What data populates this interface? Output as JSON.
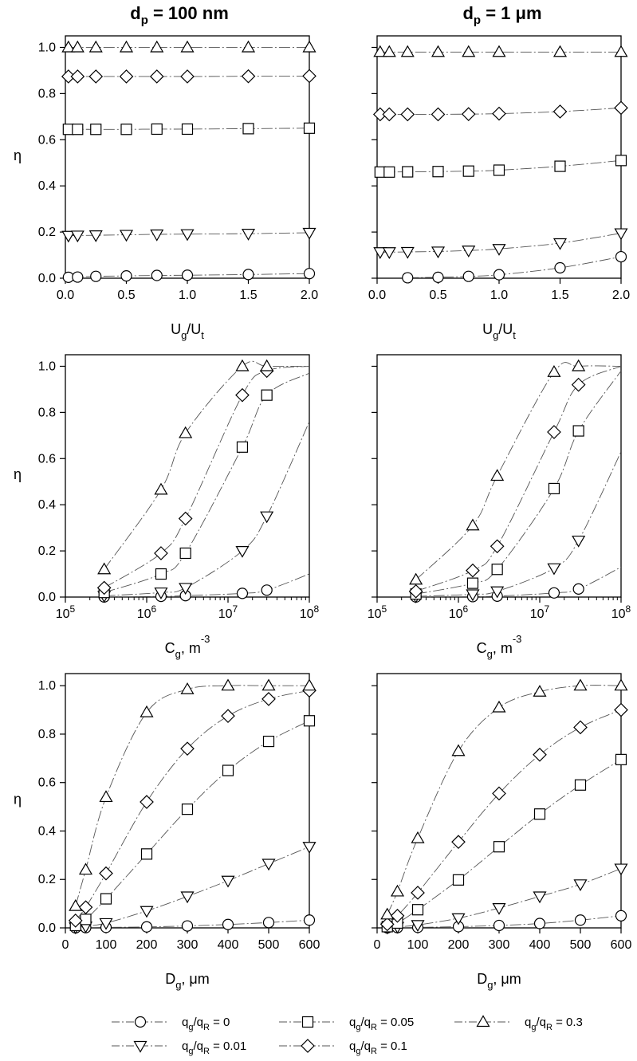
{
  "column_titles": [
    {
      "main": "d",
      "sub": "p",
      "rest": " = 100 nm"
    },
    {
      "main": "d",
      "sub": "p",
      "rest": " = 1 μm"
    }
  ],
  "legend": [
    {
      "key": "s0",
      "symbol": "circle",
      "label": {
        "a": "q",
        "s1": "g",
        "b": "/q",
        "s2": "R",
        "c": " = 0"
      }
    },
    {
      "key": "s05",
      "symbol": "square",
      "label": {
        "a": "q",
        "s1": "g",
        "b": "/q",
        "s2": "R",
        "c": " = 0.05"
      }
    },
    {
      "key": "s3",
      "symbol": "triangle-up",
      "label": {
        "a": "q",
        "s1": "g",
        "b": "/q",
        "s2": "R",
        "c": " = 0.3"
      }
    },
    {
      "key": "s01",
      "symbol": "triangle-down",
      "label": {
        "a": "q",
        "s1": "g",
        "b": "/q",
        "s2": "R",
        "c": " = 0.01"
      }
    },
    {
      "key": "s1",
      "symbol": "diamond",
      "label": {
        "a": "q",
        "s1": "g",
        "b": "/q",
        "s2": "R",
        "c": " = 0.1"
      }
    }
  ],
  "chart_data": [
    {
      "type": "scatter",
      "id": "r1c1",
      "row": 0,
      "col": 0,
      "ylabel": "η",
      "xlabel": {
        "a": "U",
        "s1": "g",
        "b": "/U",
        "s2": "t"
      },
      "xscale": "linear",
      "xlim": [
        0,
        2.0
      ],
      "ylim": [
        0,
        1.05
      ],
      "xticks": [
        "0.0",
        "0.5",
        "1.0",
        "1.5",
        "2.0"
      ],
      "xtick_values": [
        0,
        0.5,
        1.0,
        1.5,
        2.0
      ],
      "yticks": [
        "0.0",
        "0.2",
        "0.4",
        "0.6",
        "0.8",
        "1.0"
      ],
      "ytick_values": [
        0,
        0.2,
        0.4,
        0.6,
        0.8,
        1.0
      ],
      "series": [
        {
          "key": "s0",
          "x": [
            0.025,
            0.1,
            0.25,
            0.5,
            0.75,
            1.0,
            1.5,
            2.0
          ],
          "y": [
            0.004,
            0.005,
            0.008,
            0.01,
            0.012,
            0.013,
            0.016,
            0.02
          ]
        },
        {
          "key": "s01",
          "x": [
            0.025,
            0.1,
            0.25,
            0.5,
            0.75,
            1.0,
            1.5,
            2.0
          ],
          "y": [
            0.184,
            0.185,
            0.186,
            0.188,
            0.19,
            0.191,
            0.193,
            0.197
          ]
        },
        {
          "key": "s05",
          "x": [
            0.025,
            0.1,
            0.25,
            0.5,
            0.75,
            1.0,
            1.5,
            2.0
          ],
          "y": [
            0.645,
            0.645,
            0.645,
            0.645,
            0.646,
            0.646,
            0.648,
            0.65
          ]
        },
        {
          "key": "s1",
          "x": [
            0.025,
            0.1,
            0.25,
            0.5,
            0.75,
            1.0,
            1.5,
            2.0
          ],
          "y": [
            0.874,
            0.874,
            0.874,
            0.874,
            0.874,
            0.874,
            0.875,
            0.876
          ]
        },
        {
          "key": "s3",
          "x": [
            0.025,
            0.1,
            0.25,
            0.5,
            0.75,
            1.0,
            1.5,
            2.0
          ],
          "y": [
            1.0,
            1.0,
            1.0,
            1.0,
            1.0,
            1.0,
            1.0,
            1.0
          ]
        }
      ]
    },
    {
      "type": "scatter",
      "id": "r1c2",
      "row": 0,
      "col": 1,
      "ylabel": "",
      "xlabel": {
        "a": "U",
        "s1": "g",
        "b": "/U",
        "s2": "t"
      },
      "xscale": "linear",
      "xlim": [
        0,
        2.0
      ],
      "ylim": [
        0,
        1.05
      ],
      "xticks": [
        "0.0",
        "0.5",
        "1.0",
        "1.5",
        "2.0"
      ],
      "xtick_values": [
        0,
        0.5,
        1.0,
        1.5,
        2.0
      ],
      "yticks": [],
      "ytick_values": [
        0,
        0.2,
        0.4,
        0.6,
        0.8,
        1.0
      ],
      "series": [
        {
          "key": "s0",
          "x": [
            0.25,
            0.5,
            0.75,
            1.0,
            1.5,
            2.0
          ],
          "y": [
            0.002,
            0.004,
            0.008,
            0.015,
            0.045,
            0.093
          ]
        },
        {
          "key": "s01",
          "x": [
            0.025,
            0.1,
            0.25,
            0.5,
            0.75,
            1.0,
            1.5,
            2.0
          ],
          "y": [
            0.113,
            0.113,
            0.114,
            0.116,
            0.12,
            0.127,
            0.152,
            0.195
          ]
        },
        {
          "key": "s05",
          "x": [
            0.025,
            0.1,
            0.25,
            0.5,
            0.75,
            1.0,
            1.5,
            2.0
          ],
          "y": [
            0.46,
            0.46,
            0.461,
            0.462,
            0.464,
            0.468,
            0.485,
            0.51
          ]
        },
        {
          "key": "s1",
          "x": [
            0.025,
            0.1,
            0.25,
            0.5,
            0.75,
            1.0,
            1.5,
            2.0
          ],
          "y": [
            0.71,
            0.71,
            0.71,
            0.71,
            0.711,
            0.713,
            0.722,
            0.738
          ]
        },
        {
          "key": "s3",
          "x": [
            0.025,
            0.1,
            0.25,
            0.5,
            0.75,
            1.0,
            1.5,
            2.0
          ],
          "y": [
            0.98,
            0.98,
            0.98,
            0.98,
            0.98,
            0.98,
            0.98,
            0.98
          ]
        }
      ]
    },
    {
      "type": "scatter",
      "id": "r2c1",
      "row": 1,
      "col": 0,
      "ylabel": "η",
      "xlabel": {
        "a": "C",
        "s1": "g",
        "b": ", m",
        "sup": "-3"
      },
      "xscale": "log",
      "xlim": [
        100000,
        100000000
      ],
      "ylim": [
        0,
        1.05
      ],
      "xticks": [
        {
          "base": "10",
          "exp": "5"
        },
        {
          "base": "10",
          "exp": "6"
        },
        {
          "base": "10",
          "exp": "7"
        },
        {
          "base": "10",
          "exp": "8"
        }
      ],
      "xtick_values": [
        100000,
        1000000,
        10000000,
        100000000
      ],
      "yticks": [
        "0.0",
        "0.2",
        "0.4",
        "0.6",
        "0.8",
        "1.0"
      ],
      "ytick_values": [
        0,
        0.2,
        0.4,
        0.6,
        0.8,
        1.0
      ],
      "series": [
        {
          "key": "s0",
          "x": [
            300000,
            1500000,
            3000000,
            15000000,
            30000000
          ],
          "y": [
            0.0005,
            0.003,
            0.006,
            0.016,
            0.03
          ],
          "curve_to": [
            100000000,
            0.1
          ]
        },
        {
          "key": "s01",
          "x": [
            300000,
            1500000,
            3000000,
            15000000,
            30000000
          ],
          "y": [
            0.005,
            0.02,
            0.04,
            0.2,
            0.35
          ],
          "curve_to": [
            100000000,
            0.76
          ]
        },
        {
          "key": "s05",
          "x": [
            300000,
            1500000,
            3000000,
            15000000,
            30000000
          ],
          "y": [
            0.02,
            0.1,
            0.19,
            0.65,
            0.875
          ],
          "curve_to": [
            100000000,
            0.97
          ]
        },
        {
          "key": "s1",
          "x": [
            300000,
            1500000,
            3000000,
            15000000,
            30000000
          ],
          "y": [
            0.04,
            0.19,
            0.34,
            0.875,
            0.98
          ],
          "curve_to": [
            100000000,
            1.0
          ]
        },
        {
          "key": "s3",
          "x": [
            300000,
            1500000,
            3000000,
            15000000,
            30000000
          ],
          "y": [
            0.12,
            0.465,
            0.71,
            1.0,
            1.0
          ],
          "curve_to": [
            100000000,
            1.0
          ]
        }
      ]
    },
    {
      "type": "scatter",
      "id": "r2c2",
      "row": 1,
      "col": 1,
      "ylabel": "",
      "xlabel": {
        "a": "C",
        "s1": "g",
        "b": ", m",
        "sup": "-3"
      },
      "xscale": "log",
      "xlim": [
        100000,
        100000000
      ],
      "ylim": [
        0,
        1.05
      ],
      "xticks": [
        {
          "base": "10",
          "exp": "5"
        },
        {
          "base": "10",
          "exp": "6"
        },
        {
          "base": "10",
          "exp": "7"
        },
        {
          "base": "10",
          "exp": "8"
        }
      ],
      "xtick_values": [
        100000,
        1000000,
        10000000,
        100000000
      ],
      "yticks": [],
      "ytick_values": [
        0,
        0.2,
        0.4,
        0.6,
        0.8,
        1.0
      ],
      "series": [
        {
          "key": "s0",
          "x": [
            300000,
            1500000,
            3000000,
            15000000,
            30000000
          ],
          "y": [
            0.0003,
            0.002,
            0.004,
            0.018,
            0.035
          ],
          "curve_to": [
            100000000,
            0.13
          ]
        },
        {
          "key": "s01",
          "x": [
            300000,
            1500000,
            3000000,
            15000000,
            30000000
          ],
          "y": [
            0.003,
            0.012,
            0.025,
            0.125,
            0.245
          ],
          "curve_to": [
            100000000,
            0.63
          ]
        },
        {
          "key": "s05",
          "x": [
            300000,
            1500000,
            3000000,
            15000000,
            30000000
          ],
          "y": [
            0.013,
            0.06,
            0.12,
            0.47,
            0.72
          ],
          "curve_to": [
            100000000,
            0.98
          ]
        },
        {
          "key": "s1",
          "x": [
            300000,
            1500000,
            3000000,
            15000000,
            30000000
          ],
          "y": [
            0.025,
            0.115,
            0.22,
            0.715,
            0.92
          ],
          "curve_to": [
            100000000,
            1.0
          ]
        },
        {
          "key": "s3",
          "x": [
            300000,
            1500000,
            3000000,
            15000000,
            30000000
          ],
          "y": [
            0.075,
            0.31,
            0.525,
            0.975,
            1.0
          ],
          "curve_to": [
            100000000,
            1.0
          ]
        }
      ]
    },
    {
      "type": "scatter",
      "id": "r3c1",
      "row": 2,
      "col": 0,
      "ylabel": "η",
      "xlabel": {
        "a": "D",
        "s1": "g",
        "b": ", μm"
      },
      "xscale": "linear",
      "xlim": [
        0,
        600
      ],
      "ylim": [
        0,
        1.05
      ],
      "xticks": [
        "0",
        "100",
        "200",
        "300",
        "400",
        "500",
        "600"
      ],
      "xtick_values": [
        0,
        100,
        200,
        300,
        400,
        500,
        600
      ],
      "yticks": [
        "0.0",
        "0.2",
        "0.4",
        "0.6",
        "0.8",
        "1.0"
      ],
      "ytick_values": [
        0,
        0.2,
        0.4,
        0.6,
        0.8,
        1.0
      ],
      "series": [
        {
          "key": "s0",
          "x": [
            25,
            50,
            100,
            200,
            300,
            400,
            500,
            600
          ],
          "y": [
            0.0,
            0.001,
            0.002,
            0.004,
            0.008,
            0.014,
            0.022,
            0.032
          ]
        },
        {
          "key": "s01",
          "x": [
            25,
            50,
            100,
            200,
            300,
            400,
            500,
            600
          ],
          "y": [
            0.002,
            0.006,
            0.02,
            0.07,
            0.13,
            0.195,
            0.265,
            0.335
          ]
        },
        {
          "key": "s05",
          "x": [
            25,
            50,
            100,
            200,
            300,
            400,
            500,
            600
          ],
          "y": [
            0.01,
            0.035,
            0.12,
            0.305,
            0.49,
            0.65,
            0.77,
            0.855
          ]
        },
        {
          "key": "s1",
          "x": [
            25,
            50,
            100,
            200,
            300,
            400,
            500,
            600
          ],
          "y": [
            0.03,
            0.085,
            0.225,
            0.52,
            0.74,
            0.875,
            0.945,
            0.98
          ]
        },
        {
          "key": "s3",
          "x": [
            25,
            50,
            100,
            200,
            300,
            400,
            500,
            600
          ],
          "y": [
            0.09,
            0.24,
            0.54,
            0.89,
            0.985,
            1.0,
            1.0,
            1.0
          ]
        }
      ]
    },
    {
      "type": "scatter",
      "id": "r3c2",
      "row": 2,
      "col": 1,
      "ylabel": "",
      "xlabel": {
        "a": "D",
        "s1": "g",
        "b": ", μm"
      },
      "xscale": "linear",
      "xlim": [
        0,
        600
      ],
      "ylim": [
        0,
        1.05
      ],
      "xticks": [
        "0",
        "100",
        "200",
        "300",
        "400",
        "500",
        "600"
      ],
      "xtick_values": [
        0,
        100,
        200,
        300,
        400,
        500,
        600
      ],
      "yticks": [],
      "ytick_values": [
        0,
        0.2,
        0.4,
        0.6,
        0.8,
        1.0
      ],
      "series": [
        {
          "key": "s0",
          "x": [
            25,
            50,
            100,
            200,
            300,
            400,
            500,
            600
          ],
          "y": [
            0.0,
            0.001,
            0.002,
            0.005,
            0.01,
            0.018,
            0.032,
            0.05
          ]
        },
        {
          "key": "s01",
          "x": [
            25,
            50,
            100,
            200,
            300,
            400,
            500,
            600
          ],
          "y": [
            0.001,
            0.004,
            0.012,
            0.04,
            0.082,
            0.13,
            0.18,
            0.245
          ]
        },
        {
          "key": "s05",
          "x": [
            25,
            50,
            100,
            200,
            300,
            400,
            500,
            600
          ],
          "y": [
            0.005,
            0.02,
            0.075,
            0.198,
            0.335,
            0.47,
            0.59,
            0.695
          ]
        },
        {
          "key": "s1",
          "x": [
            25,
            50,
            100,
            200,
            300,
            400,
            500,
            600
          ],
          "y": [
            0.015,
            0.05,
            0.145,
            0.355,
            0.555,
            0.715,
            0.828,
            0.9
          ]
        },
        {
          "key": "s3",
          "x": [
            25,
            50,
            100,
            200,
            300,
            400,
            500,
            600
          ],
          "y": [
            0.055,
            0.15,
            0.37,
            0.73,
            0.91,
            0.975,
            1.0,
            1.0
          ]
        }
      ]
    }
  ]
}
